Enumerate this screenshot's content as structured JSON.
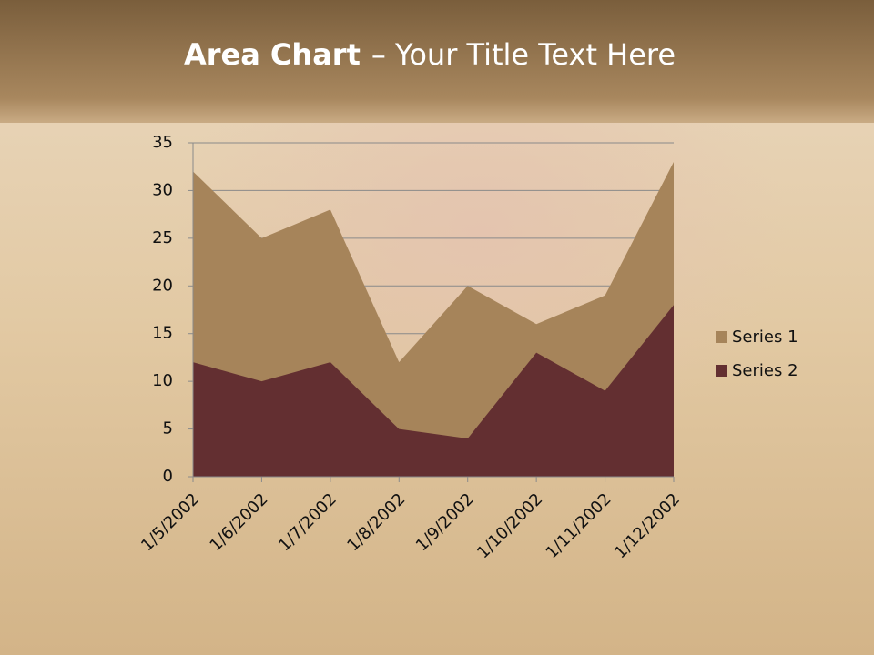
{
  "chart_data": {
    "type": "area",
    "title_parts": [
      "Area Chart",
      "– Your Title Text Here"
    ],
    "categories": [
      "1/5/2002",
      "1/6/2002",
      "1/7/2002",
      "1/8/2002",
      "1/9/2002",
      "1/10/2002",
      "1/11/2002",
      "1/12/2002"
    ],
    "series": [
      {
        "name": "Series 1",
        "color": "#a6845a",
        "values": [
          32,
          25,
          28,
          12,
          20,
          16,
          19,
          33
        ]
      },
      {
        "name": "Series 2",
        "color": "#632f31",
        "values": [
          12,
          10,
          12,
          5,
          4,
          13,
          9,
          18
        ]
      }
    ],
    "ylim": [
      0,
      35
    ],
    "yticks": [
      0,
      5,
      10,
      15,
      20,
      25,
      30,
      35
    ],
    "grid": true,
    "legend": "right"
  }
}
